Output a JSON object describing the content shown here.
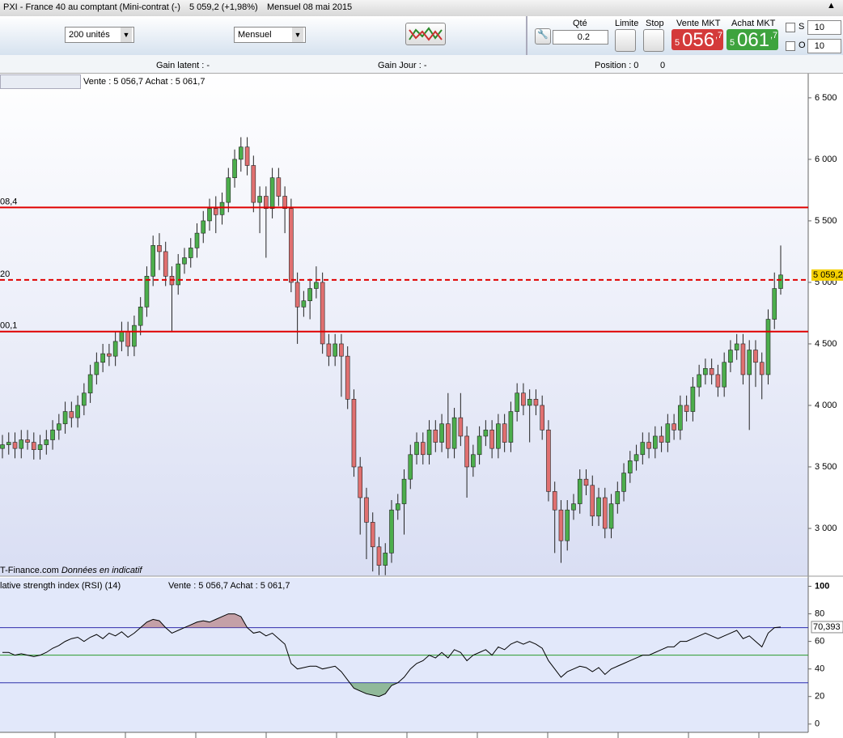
{
  "title_bar": {
    "title": "PXI - France 40 au comptant (Mini-contrat  (-)",
    "quote": "5 059,2 (+1,98%)",
    "period": "Mensuel  08 mai 2015"
  },
  "toolbar": {
    "size_select": "200 unités",
    "period_select": "Mensuel",
    "qty_label": "Qté",
    "qty": "0.2",
    "limit": "Limite",
    "stop": "Stop",
    "sell_label": "Vente MKT",
    "sell_price": {
      "prefix": "5",
      "main": "056",
      "decimal": ",7"
    },
    "buy_label": "Achat MKT",
    "buy_price": {
      "prefix": "5",
      "main": "061",
      "decimal": ",7"
    },
    "s_label": "S",
    "s_value": "10",
    "o_label": "O",
    "o_value": "10"
  },
  "info_bar": {
    "gain_latent": "Gain latent : -",
    "gain_jour": "Gain Jour : -",
    "position": "Position : 0",
    "position_count": "0"
  },
  "chart_data": [
    {
      "type": "candlestick",
      "header": "Vente : 5 056,7 Achat : 5 061,7",
      "watermark_site": "T-Finance.com",
      "watermark_note": "Données en indicatif",
      "up_color": "#4cae4c",
      "down_color": "#e07070",
      "open": [
        3650,
        3680,
        3700,
        3650,
        3720,
        3700,
        3640,
        3680,
        3720,
        3800,
        3850,
        3950,
        3900,
        4000,
        4100,
        4250,
        4350,
        4420,
        4400,
        4520,
        4600,
        4480,
        4650,
        4800,
        5050,
        5300,
        5250,
        5050,
        4980,
        5150,
        5200,
        5280,
        5400,
        5500,
        5600,
        5550,
        5650,
        5850,
        6000,
        6100,
        5950,
        5650,
        5700,
        5600,
        5850,
        5700,
        5600,
        5000,
        4800,
        4850,
        4950,
        5000,
        4500,
        4400,
        4500,
        4400,
        4050,
        3500,
        3250,
        3050,
        2850,
        2700,
        2800,
        3150,
        3200,
        3400,
        3600,
        3700,
        3600,
        3800,
        3700,
        3850,
        3650,
        3900,
        3750,
        3500,
        3600,
        3750,
        3800,
        3650,
        3850,
        3700,
        3950,
        4100,
        4000,
        4050,
        4000,
        3800,
        3300,
        3150,
        2900,
        3150,
        3200,
        3400,
        3350,
        3100,
        3250,
        3000,
        3200,
        3300,
        3450,
        3550,
        3600,
        3700,
        3650,
        3750,
        3700,
        3850,
        3800,
        4000,
        3950,
        4150,
        4250,
        4300,
        4250,
        4150,
        4350,
        4450,
        4500,
        4250,
        4450,
        4350,
        4250,
        4700,
        4950
      ],
      "high": [
        3760,
        3780,
        3780,
        3800,
        3800,
        3780,
        3760,
        3800,
        3880,
        3930,
        4030,
        4030,
        4080,
        4180,
        4330,
        4430,
        4500,
        4500,
        4600,
        4680,
        4680,
        4730,
        4880,
        5130,
        5380,
        5400,
        5330,
        5130,
        5230,
        5280,
        5360,
        5480,
        5580,
        5680,
        5700,
        5730,
        5930,
        6080,
        6180,
        6180,
        6030,
        5780,
        5780,
        5930,
        5930,
        5780,
        5680,
        5080,
        4930,
        5030,
        5130,
        5080,
        4580,
        4580,
        4580,
        4480,
        4130,
        3580,
        3330,
        3130,
        2930,
        2880,
        3230,
        3280,
        3480,
        3680,
        3780,
        3780,
        3880,
        3880,
        3930,
        4100,
        3980,
        4100,
        3830,
        3680,
        3830,
        3880,
        3880,
        3930,
        3930,
        4030,
        4180,
        4180,
        4130,
        4130,
        4080,
        3880,
        3380,
        3230,
        3230,
        3280,
        3480,
        3480,
        3430,
        3330,
        3330,
        3280,
        3380,
        3530,
        3630,
        3680,
        3780,
        3780,
        3830,
        3830,
        3930,
        3930,
        4080,
        4080,
        4230,
        4330,
        4380,
        4380,
        4330,
        4430,
        4530,
        4580,
        4580,
        4530,
        4530,
        4430,
        4780,
        5080,
        5300
      ],
      "low": [
        3570,
        3600,
        3570,
        3570,
        3640,
        3560,
        3560,
        3600,
        3640,
        3720,
        3770,
        3820,
        3820,
        3920,
        4020,
        4170,
        4270,
        4320,
        4320,
        4440,
        4400,
        4400,
        4570,
        4720,
        4970,
        5100,
        4970,
        4600,
        4900,
        5070,
        5120,
        5200,
        5320,
        5420,
        5400,
        5470,
        5570,
        5770,
        5900,
        5870,
        5570,
        5400,
        5200,
        5520,
        5620,
        5400,
        4920,
        4500,
        4720,
        4700,
        4870,
        4420,
        4320,
        4320,
        4070,
        3970,
        3420,
        2950,
        2750,
        2650,
        2620,
        2620,
        2720,
        3070,
        2950,
        3320,
        3520,
        3520,
        3520,
        3620,
        3620,
        3570,
        3570,
        3670,
        3250,
        3420,
        3520,
        3670,
        3570,
        3570,
        3620,
        3620,
        3870,
        3920,
        3700,
        3920,
        3720,
        3220,
        2800,
        2720,
        2820,
        3070,
        3120,
        3270,
        3020,
        3020,
        2920,
        2920,
        3120,
        3220,
        3370,
        3470,
        3520,
        3570,
        3570,
        3620,
        3620,
        3720,
        3720,
        3870,
        3870,
        4070,
        4170,
        4170,
        4070,
        4070,
        4270,
        4370,
        4170,
        3800,
        4150,
        4050,
        4170,
        4620,
        4900
      ],
      "close": [
        3680,
        3700,
        3650,
        3720,
        3700,
        3640,
        3680,
        3720,
        3800,
        3850,
        3950,
        3900,
        4000,
        4100,
        4250,
        4350,
        4420,
        4400,
        4520,
        4600,
        4480,
        4650,
        4800,
        5050,
        5300,
        5250,
        5050,
        4980,
        5150,
        5200,
        5280,
        5400,
        5500,
        5600,
        5550,
        5650,
        5850,
        6000,
        6100,
        5950,
        5650,
        5700,
        5600,
        5850,
        5700,
        5600,
        5000,
        4800,
        4850,
        4950,
        5000,
        4500,
        4400,
        4500,
        4400,
        4050,
        3500,
        3250,
        3050,
        2850,
        2700,
        2800,
        3150,
        3200,
        3400,
        3600,
        3700,
        3600,
        3800,
        3700,
        3850,
        3650,
        3900,
        3750,
        3500,
        3600,
        3750,
        3800,
        3650,
        3850,
        3700,
        3950,
        4100,
        4000,
        4050,
        4000,
        3800,
        3300,
        3150,
        2900,
        3150,
        3200,
        3400,
        3350,
        3100,
        3250,
        3000,
        3200,
        3300,
        3450,
        3550,
        3600,
        3700,
        3650,
        3750,
        3700,
        3850,
        3800,
        4000,
        3950,
        4150,
        4250,
        4300,
        4250,
        4150,
        4350,
        4450,
        4500,
        4250,
        4450,
        4350,
        4250,
        4700,
        4950,
        5060
      ],
      "ylim": [
        2625,
        6690
      ],
      "yticks": [
        {
          "value": 3000,
          "label": "3 000"
        },
        {
          "value": 3500,
          "label": "3 500"
        },
        {
          "value": 4000,
          "label": "4 000"
        },
        {
          "value": 4500,
          "label": "4 500"
        },
        {
          "value": 5000,
          "label": "5 000"
        },
        {
          "value": 5500,
          "label": "5 500"
        },
        {
          "value": 6000,
          "label": "6 000"
        },
        {
          "value": 6500,
          "label": "6 500"
        }
      ],
      "levels": [
        {
          "value": 5608.4,
          "label": "08,4",
          "style": "solid"
        },
        {
          "value": 5020,
          "label": "20",
          "style": "dashed"
        },
        {
          "value": 4600.1,
          "label": "00,1",
          "style": "solid"
        }
      ],
      "last_price": {
        "value": 5059.2,
        "label": "5 059,2"
      }
    },
    {
      "type": "line",
      "title": "lative strength index (RSI) (14)",
      "header": "Vente : 5 056,7 Achat : 5 061,7",
      "color": "#000000",
      "values": [
        52,
        52,
        50,
        51,
        50,
        49,
        50,
        52,
        55,
        57,
        60,
        62,
        63,
        60,
        63,
        65,
        62,
        66,
        64,
        67,
        63,
        66,
        70,
        74,
        76,
        75,
        70,
        66,
        68,
        70,
        72,
        74,
        75,
        74,
        76,
        78,
        80,
        80,
        78,
        70,
        66,
        67,
        64,
        66,
        62,
        58,
        44,
        40,
        41,
        42,
        42,
        40,
        41,
        42,
        38,
        32,
        26,
        24,
        22,
        21,
        20,
        22,
        28,
        30,
        34,
        40,
        44,
        46,
        50,
        48,
        52,
        48,
        54,
        52,
        46,
        50,
        52,
        54,
        50,
        56,
        54,
        58,
        60,
        58,
        60,
        58,
        55,
        46,
        40,
        34,
        38,
        40,
        42,
        41,
        38,
        41,
        36,
        40,
        42,
        44,
        46,
        48,
        50,
        50,
        52,
        54,
        56,
        56,
        60,
        60,
        62,
        64,
        66,
        64,
        62,
        64,
        66,
        68,
        62,
        64,
        60,
        56,
        66,
        70,
        70.393
      ],
      "ylim": [
        -6,
        105
      ],
      "yticks": [
        0,
        20,
        40,
        60,
        80,
        100
      ],
      "levels": [
        {
          "value": 70,
          "color": "#2a2ab0"
        },
        {
          "value": 50,
          "color": "#2a9a2a"
        },
        {
          "value": 30,
          "color": "#2a2ab0"
        }
      ],
      "overbought_color": "#b07070",
      "oversold_color": "#5a9a5a",
      "last_label": {
        "value": 70.393,
        "label": "70,393"
      }
    }
  ]
}
